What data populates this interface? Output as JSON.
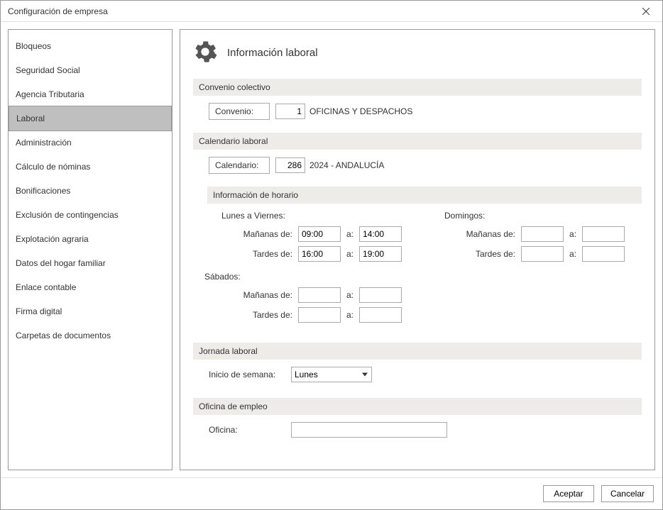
{
  "window": {
    "title": "Configuración de empresa"
  },
  "sidebar": {
    "items": [
      {
        "label": "Bloqueos"
      },
      {
        "label": "Seguridad Social"
      },
      {
        "label": "Agencia Tributaria"
      },
      {
        "label": "Laboral"
      },
      {
        "label": "Administración"
      },
      {
        "label": "Cálculo de nóminas"
      },
      {
        "label": "Bonificaciones"
      },
      {
        "label": "Exclusión de contingencias"
      },
      {
        "label": "Explotación agraria"
      },
      {
        "label": "Datos del hogar familiar"
      },
      {
        "label": "Enlace contable"
      },
      {
        "label": "Firma digital"
      },
      {
        "label": "Carpetas de documentos"
      }
    ],
    "selected_index": 3
  },
  "main": {
    "title": "Información laboral",
    "sections": {
      "convenio": {
        "header": "Convenio colectivo",
        "label": "Convenio:",
        "code": "1",
        "name": "OFICINAS Y DESPACHOS"
      },
      "calendario": {
        "header": "Calendario laboral",
        "label": "Calendario:",
        "code": "286",
        "name": "2024 - ANDALUCÍA"
      },
      "horario": {
        "header": "Información de horario",
        "weekdays": {
          "title": "Lunes a Viernes:",
          "morning_label": "Mañanas de:",
          "afternoon_label": "Tardes de:",
          "sep": "a:",
          "morning_from": "09:00",
          "morning_to": "14:00",
          "afternoon_from": "16:00",
          "afternoon_to": "19:00"
        },
        "saturday": {
          "title": "Sábados:",
          "morning_label": "Mañanas de:",
          "afternoon_label": "Tardes de:",
          "sep": "a:",
          "morning_from": "",
          "morning_to": "",
          "afternoon_from": "",
          "afternoon_to": ""
        },
        "sunday": {
          "title": "Domingos:",
          "morning_label": "Mañanas de:",
          "afternoon_label": "Tardes de:",
          "sep": "a:",
          "morning_from": "",
          "morning_to": "",
          "afternoon_from": "",
          "afternoon_to": ""
        }
      },
      "jornada": {
        "header": "Jornada laboral",
        "label": "Inicio de semana:",
        "value": "Lunes"
      },
      "oficina": {
        "header": "Oficina de empleo",
        "label": "Oficina:",
        "value": ""
      }
    }
  },
  "footer": {
    "accept": "Aceptar",
    "cancel": "Cancelar"
  }
}
